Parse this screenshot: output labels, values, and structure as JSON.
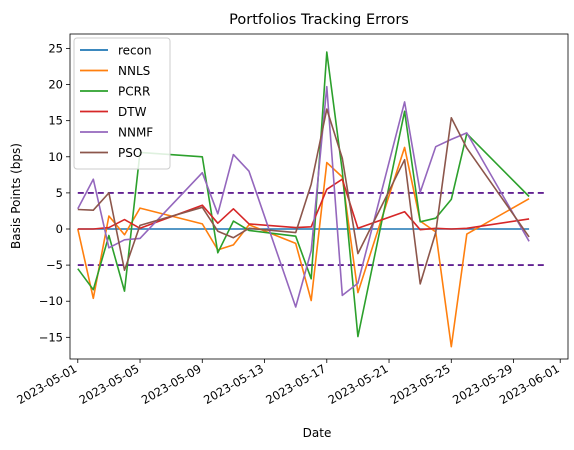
{
  "chart_data": {
    "type": "line",
    "title": "Portfolios Tracking Errors",
    "xlabel": "Date",
    "ylabel": "Basis Points (bps)",
    "xlim": [
      "2023-04-30",
      "2023-06-01"
    ],
    "ylim": [
      -18,
      27
    ],
    "x_tick_labels": [
      "2023-05-01",
      "2023-05-05",
      "2023-05-09",
      "2023-05-13",
      "2023-05-17",
      "2023-05-21",
      "2023-05-25",
      "2023-05-29",
      "2023-06-01"
    ],
    "y_tick_values": [
      -15,
      -10,
      -5,
      0,
      5,
      10,
      15,
      20,
      25
    ],
    "legend_position": "top-left",
    "grid": false,
    "threshold_lines": [
      {
        "value": 5,
        "from": "2023-05-01",
        "to": "2023-05-31",
        "style": "dashed",
        "color": "#4b0082"
      },
      {
        "value": -5,
        "from": "2023-05-01",
        "to": "2023-05-31",
        "style": "dashed",
        "color": "#4b0082"
      }
    ],
    "x": [
      "2023-05-01",
      "2023-05-02",
      "2023-05-03",
      "2023-05-04",
      "2023-05-05",
      "2023-05-09",
      "2023-05-10",
      "2023-05-11",
      "2023-05-12",
      "2023-05-15",
      "2023-05-16",
      "2023-05-17",
      "2023-05-18",
      "2023-05-19",
      "2023-05-22",
      "2023-05-23",
      "2023-05-24",
      "2023-05-25",
      "2023-05-26",
      "2023-05-30"
    ],
    "series": [
      {
        "name": "recon",
        "color": "#1f77b4",
        "values": [
          0,
          0,
          0,
          0,
          0,
          0,
          0,
          0,
          0,
          0,
          0,
          0,
          0,
          0,
          0,
          0,
          0,
          0,
          0,
          0
        ]
      },
      {
        "name": "NNLS",
        "color": "#ff7f0e",
        "values": [
          0,
          -9.6,
          1.8,
          -0.8,
          2.9,
          0.7,
          -2.9,
          -2.2,
          0.6,
          -2.0,
          -9.9,
          9.2,
          7.2,
          -8.8,
          11.3,
          1.1,
          -0.4,
          -16.3,
          -0.7,
          4.2
        ]
      },
      {
        "name": "PCRR",
        "color": "#2ca02c",
        "values": [
          -5.5,
          -8.4,
          -0.9,
          -8.6,
          10.6,
          10.0,
          -3.3,
          1.1,
          -0.2,
          -1.0,
          -6.9,
          24.5,
          8.0,
          -14.9,
          16.3,
          1.0,
          1.5,
          4.1,
          13.2,
          4.5
        ]
      },
      {
        "name": "DTW",
        "color": "#d62728",
        "values": [
          0,
          0,
          0.2,
          1.3,
          0.1,
          3.3,
          0.8,
          2.8,
          0.7,
          0.2,
          0.3,
          5.5,
          6.9,
          0.1,
          2.4,
          -0.1,
          0.1,
          0,
          0.1,
          1.4
        ]
      },
      {
        "name": "NNMF",
        "color": "#9467bd",
        "values": [
          2.8,
          6.9,
          -2.6,
          -1.5,
          -1.3,
          7.8,
          2.1,
          10.3,
          8.0,
          -10.8,
          -3.0,
          19.7,
          -9.2,
          -7.5,
          17.6,
          5.1,
          11.4,
          12.4,
          13.3,
          -1.7
        ]
      },
      {
        "name": "PSO",
        "color": "#8c564b",
        "values": [
          2.7,
          2.6,
          5.0,
          -5.7,
          0.5,
          3.0,
          -0.3,
          -1.2,
          0.1,
          -0.5,
          6.2,
          16.6,
          9.8,
          -3.4,
          9.6,
          -7.6,
          -0.5,
          15.4,
          11.2,
          -1.1
        ]
      }
    ]
  }
}
